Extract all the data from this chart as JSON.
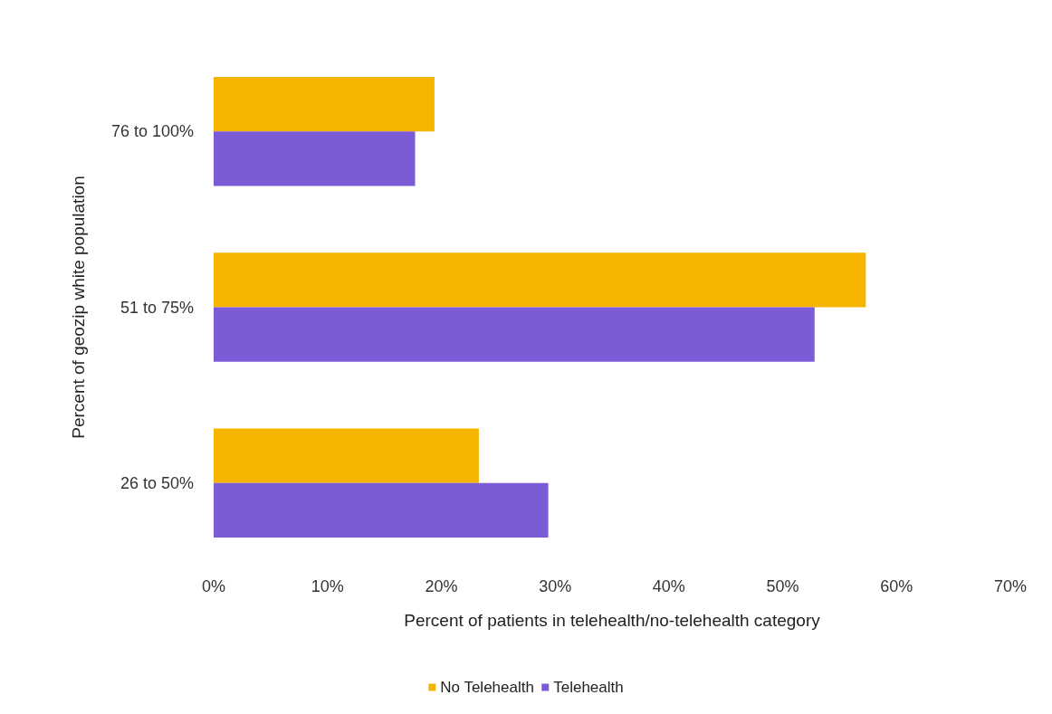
{
  "chart_data": {
    "type": "bar",
    "orientation": "horizontal",
    "xlabel": "Percent of patients in telehealth/no-telehealth category",
    "ylabel": "Percent of geozip white population",
    "categories": [
      "76 to 100%",
      "51 to 75%",
      "26 to 50%"
    ],
    "series": [
      {
        "name": "No Telehealth",
        "color": "#f5b400",
        "values": [
          19.4,
          57.3,
          23.3
        ]
      },
      {
        "name": "Telehealth",
        "color": "#7b5cd6",
        "values": [
          17.7,
          52.8,
          29.4
        ]
      }
    ],
    "xlim": [
      0,
      70
    ],
    "xticks": [
      {
        "value": 0,
        "label": "0%"
      },
      {
        "value": 10,
        "label": "10%"
      },
      {
        "value": 20,
        "label": "20%"
      },
      {
        "value": 30,
        "label": "30%"
      },
      {
        "value": 40,
        "label": "40%"
      },
      {
        "value": 50,
        "label": "50%"
      },
      {
        "value": 60,
        "label": "60%"
      },
      {
        "value": 70,
        "label": "70%"
      }
    ],
    "grid": false,
    "legend": "bottom"
  }
}
